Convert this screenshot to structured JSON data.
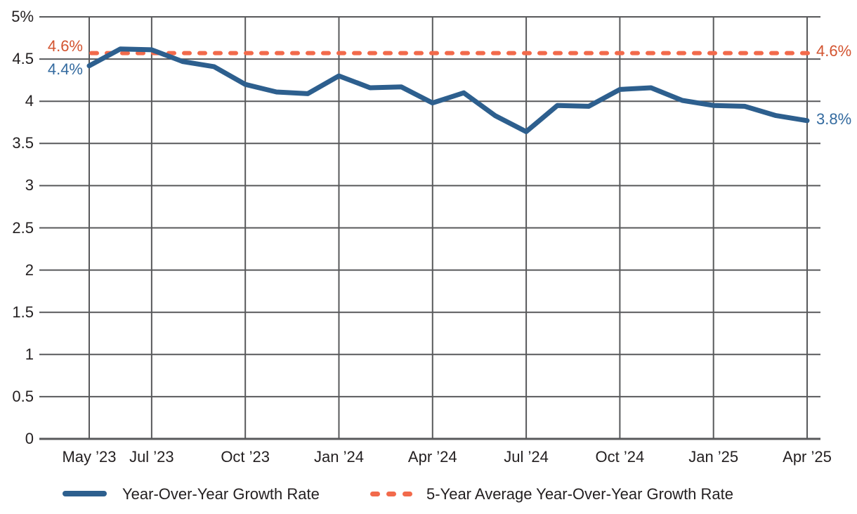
{
  "chart_data": {
    "type": "line",
    "title": "",
    "xlabel": "",
    "ylabel": "",
    "x": [
      "May ’23",
      "Jun ’23",
      "Jul ’23",
      "Aug ’23",
      "Sep ’23",
      "Oct ’23",
      "Nov ’23",
      "Dec ’23",
      "Jan ’24",
      "Feb ’24",
      "Mar ’24",
      "Apr ’24",
      "May ’24",
      "Jun ’24",
      "Jul ’24",
      "Aug ’24",
      "Sep ’24",
      "Oct ’24",
      "Nov ’24",
      "Dec ’24",
      "Jan ’25",
      "Feb ’25",
      "Mar ’25",
      "Apr ’25"
    ],
    "series": [
      {
        "name": "Year-Over-Year Growth Rate",
        "kind": "line",
        "color": "#2d5f8e",
        "values": [
          4.42,
          4.62,
          4.61,
          4.47,
          4.41,
          4.2,
          4.11,
          4.09,
          4.3,
          4.16,
          4.17,
          3.98,
          4.1,
          3.83,
          3.64,
          3.95,
          3.94,
          4.14,
          4.16,
          4.01,
          3.95,
          3.94,
          3.83,
          3.77
        ]
      },
      {
        "name": "5-Year Average Year-Over-Year Growth Rate",
        "kind": "reference-line",
        "style": "dashed",
        "color": "#f26a4b",
        "value": 4.57
      }
    ],
    "ylim": [
      0,
      5
    ],
    "ytick_step": 0.5,
    "ytick_labels": [
      "0",
      "0.5",
      "1",
      "1.5",
      "2",
      "2.5",
      "3",
      "3.5",
      "4",
      "4.5",
      "5%"
    ],
    "xticks": [
      {
        "label": "May ’23",
        "month_index": 0
      },
      {
        "label": "Jul ’23",
        "month_index": 2
      },
      {
        "label": "Oct ’23",
        "month_index": 5
      },
      {
        "label": "Jan ’24",
        "month_index": 8
      },
      {
        "label": "Apr ’24",
        "month_index": 11
      },
      {
        "label": "Jul ’24",
        "month_index": 14
      },
      {
        "label": "Oct ’24",
        "month_index": 17
      },
      {
        "label": "Jan ’25",
        "month_index": 20
      },
      {
        "label": "Apr ’25",
        "month_index": 23
      }
    ],
    "grid": true,
    "legend_position": "bottom",
    "annotations": {
      "avg_start": {
        "text": "4.6%",
        "color": "#d35430"
      },
      "series_start": {
        "text": "4.4%",
        "color": "#336a9f"
      },
      "avg_end": {
        "text": "4.6%",
        "color": "#d35430"
      },
      "series_end": {
        "text": "3.8%",
        "color": "#336a9f"
      }
    }
  },
  "legend": {
    "items": [
      {
        "label": "Year-Over-Year Growth Rate",
        "swatch": "solid-line",
        "color": "#2d5f8e"
      },
      {
        "label": "5-Year Average Year-Over-Year Growth Rate",
        "swatch": "dashed-line",
        "color": "#f26a4b"
      }
    ]
  },
  "colors": {
    "background": "#ffffff",
    "grid": "#58595b",
    "axis": "#58595b",
    "axis_text": "#231f20",
    "line_blue": "#2d5f8e",
    "dash_orange": "#f26a4b",
    "annotation_orange": "#d35430",
    "annotation_blue": "#336a9f"
  }
}
